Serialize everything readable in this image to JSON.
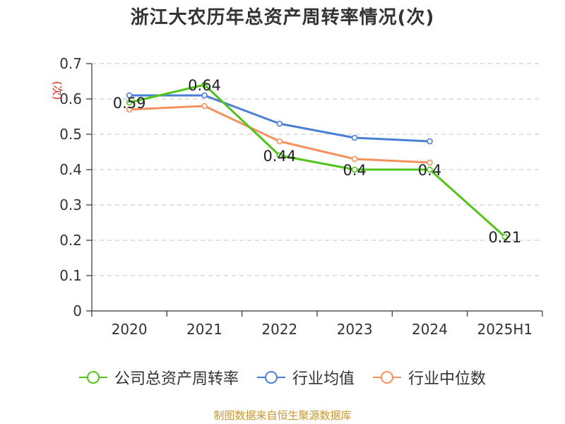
{
  "chart_data": {
    "type": "line",
    "title": "浙江大农历年总资产周转率情况(次)",
    "ylabel": "(次)",
    "xlabel": "",
    "categories": [
      "2020",
      "2021",
      "2022",
      "2023",
      "2024",
      "2025H1"
    ],
    "ylim": [
      0,
      0.7
    ],
    "yticks": [
      "0",
      "0.1",
      "0.2",
      "0.3",
      "0.4",
      "0.5",
      "0.6",
      "0.7"
    ],
    "grid": true,
    "legend_position": "bottom",
    "series": [
      {
        "name": "公司总资产周转率",
        "color": "#52c41a",
        "values": [
          0.59,
          0.64,
          0.44,
          0.4,
          0.4,
          0.21
        ],
        "labels": [
          "0.59",
          "0.64",
          "0.44",
          "0.4",
          "0.4",
          "0.21"
        ],
        "show_labels": true
      },
      {
        "name": "行业均值",
        "color": "#4a7fd6",
        "values": [
          0.61,
          0.61,
          0.53,
          0.49,
          0.48,
          null
        ],
        "show_labels": false
      },
      {
        "name": "行业中位数",
        "color": "#f5915c",
        "values": [
          0.57,
          0.58,
          0.48,
          0.43,
          0.42,
          null
        ],
        "show_labels": false
      }
    ]
  },
  "source_note": "制图数据来自恒生聚源数据库"
}
